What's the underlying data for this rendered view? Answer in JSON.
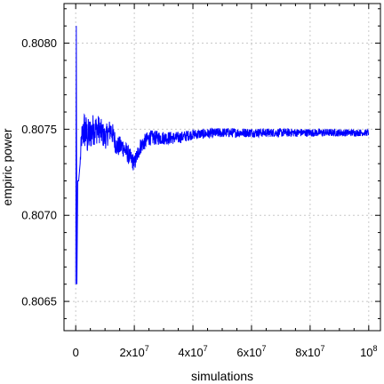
{
  "chart_data": {
    "type": "line",
    "xlabel": "simulations",
    "ylabel": "empiric power",
    "xlim": [
      -4000000,
      104000000
    ],
    "ylim": [
      0.80633,
      0.80823
    ],
    "grid": true,
    "x_ticks": [
      0,
      20000000,
      40000000,
      60000000,
      80000000,
      100000000
    ],
    "x_tick_labels": [
      {
        "base": "0",
        "exp": ""
      },
      {
        "base": "2x10",
        "exp": "7"
      },
      {
        "base": "4x10",
        "exp": "7"
      },
      {
        "base": "6x10",
        "exp": "7"
      },
      {
        "base": "8x10",
        "exp": "7"
      },
      {
        "base": "10",
        "exp": "8"
      }
    ],
    "y_ticks": [
      0.8065,
      0.807,
      0.8075,
      0.808
    ],
    "y_tick_labels": [
      "0.8065",
      "0.8070",
      "0.8075",
      "0.8080"
    ],
    "series": [
      {
        "color": "#0000ff",
        "trend": [
          [
            0,
            0.8066
          ],
          [
            200000,
            0.8081
          ],
          [
            400000,
            0.8066
          ],
          [
            700000,
            0.8072
          ],
          [
            1000000,
            0.8072
          ],
          [
            1500000,
            0.8073
          ],
          [
            2000000,
            0.80745
          ],
          [
            3000000,
            0.8075
          ],
          [
            4000000,
            0.80745
          ],
          [
            6000000,
            0.8075
          ],
          [
            8000000,
            0.8075
          ],
          [
            10000000,
            0.80745
          ],
          [
            12000000,
            0.8075
          ],
          [
            14000000,
            0.8074
          ],
          [
            16000000,
            0.8074
          ],
          [
            18000000,
            0.80735
          ],
          [
            20000000,
            0.8073
          ],
          [
            22000000,
            0.8074
          ],
          [
            25000000,
            0.80745
          ],
          [
            30000000,
            0.80745
          ],
          [
            35000000,
            0.80745
          ],
          [
            40000000,
            0.80747
          ],
          [
            50000000,
            0.80748
          ],
          [
            60000000,
            0.80748
          ],
          [
            70000000,
            0.80748
          ],
          [
            80000000,
            0.80748
          ],
          [
            90000000,
            0.80748
          ],
          [
            100000000,
            0.80748
          ]
        ],
        "noise": [
          [
            0,
            5e-05
          ],
          [
            1500000,
            5e-05
          ],
          [
            3000000,
            0.00012
          ],
          [
            5000000,
            0.0001
          ],
          [
            10000000,
            7e-05
          ],
          [
            20000000,
            5e-05
          ],
          [
            40000000,
            3e-05
          ],
          [
            70000000,
            2.5e-05
          ],
          [
            100000000,
            2e-05
          ]
        ]
      }
    ]
  }
}
